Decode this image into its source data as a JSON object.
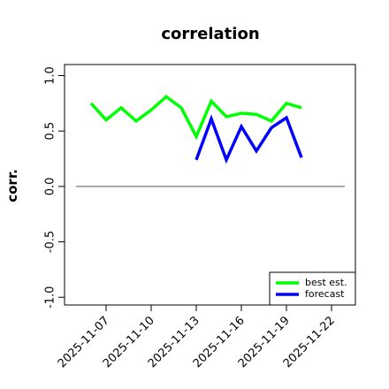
{
  "chart_data": {
    "type": "line",
    "title": "correlation",
    "ylabel": "corr.",
    "x": [
      "2025-11-06",
      "2025-11-07",
      "2025-11-08",
      "2025-11-09",
      "2025-11-10",
      "2025-11-11",
      "2025-11-12",
      "2025-11-13",
      "2025-11-14",
      "2025-11-15",
      "2025-11-16",
      "2025-11-17",
      "2025-11-18",
      "2025-11-19",
      "2025-11-20"
    ],
    "series": [
      {
        "name": "best est.",
        "color": "#00ff00",
        "values": [
          0.75,
          0.6,
          0.71,
          0.59,
          0.69,
          0.81,
          0.71,
          0.45,
          0.77,
          0.63,
          0.66,
          0.65,
          0.59,
          0.75,
          0.71
        ]
      },
      {
        "name": "forecast",
        "color": "#0000ff",
        "values": [
          null,
          null,
          null,
          null,
          null,
          null,
          null,
          0.24,
          0.61,
          0.24,
          0.54,
          0.32,
          0.53,
          0.62,
          0.26
        ]
      }
    ],
    "hline": 0,
    "xlim": [
      "2025-11-04",
      "2025-11-24"
    ],
    "xticks": [
      "2025-11-07",
      "2025-11-10",
      "2025-11-13",
      "2025-11-16",
      "2025-11-19",
      "2025-11-22"
    ],
    "xtick_colors": [
      "black",
      "black",
      "#228b22",
      "black",
      "black",
      "black"
    ],
    "ylim": [
      -1.07,
      1.1
    ],
    "yticks": [
      {
        "value": -1,
        "label": "-1.0"
      },
      {
        "value": -0.5,
        "label": "-0.5"
      },
      {
        "value": 0,
        "label": "0.0"
      },
      {
        "value": 0.5,
        "label": "0.5"
      },
      {
        "value": 1,
        "label": "1.0"
      }
    ],
    "legend": "bottom-right"
  }
}
